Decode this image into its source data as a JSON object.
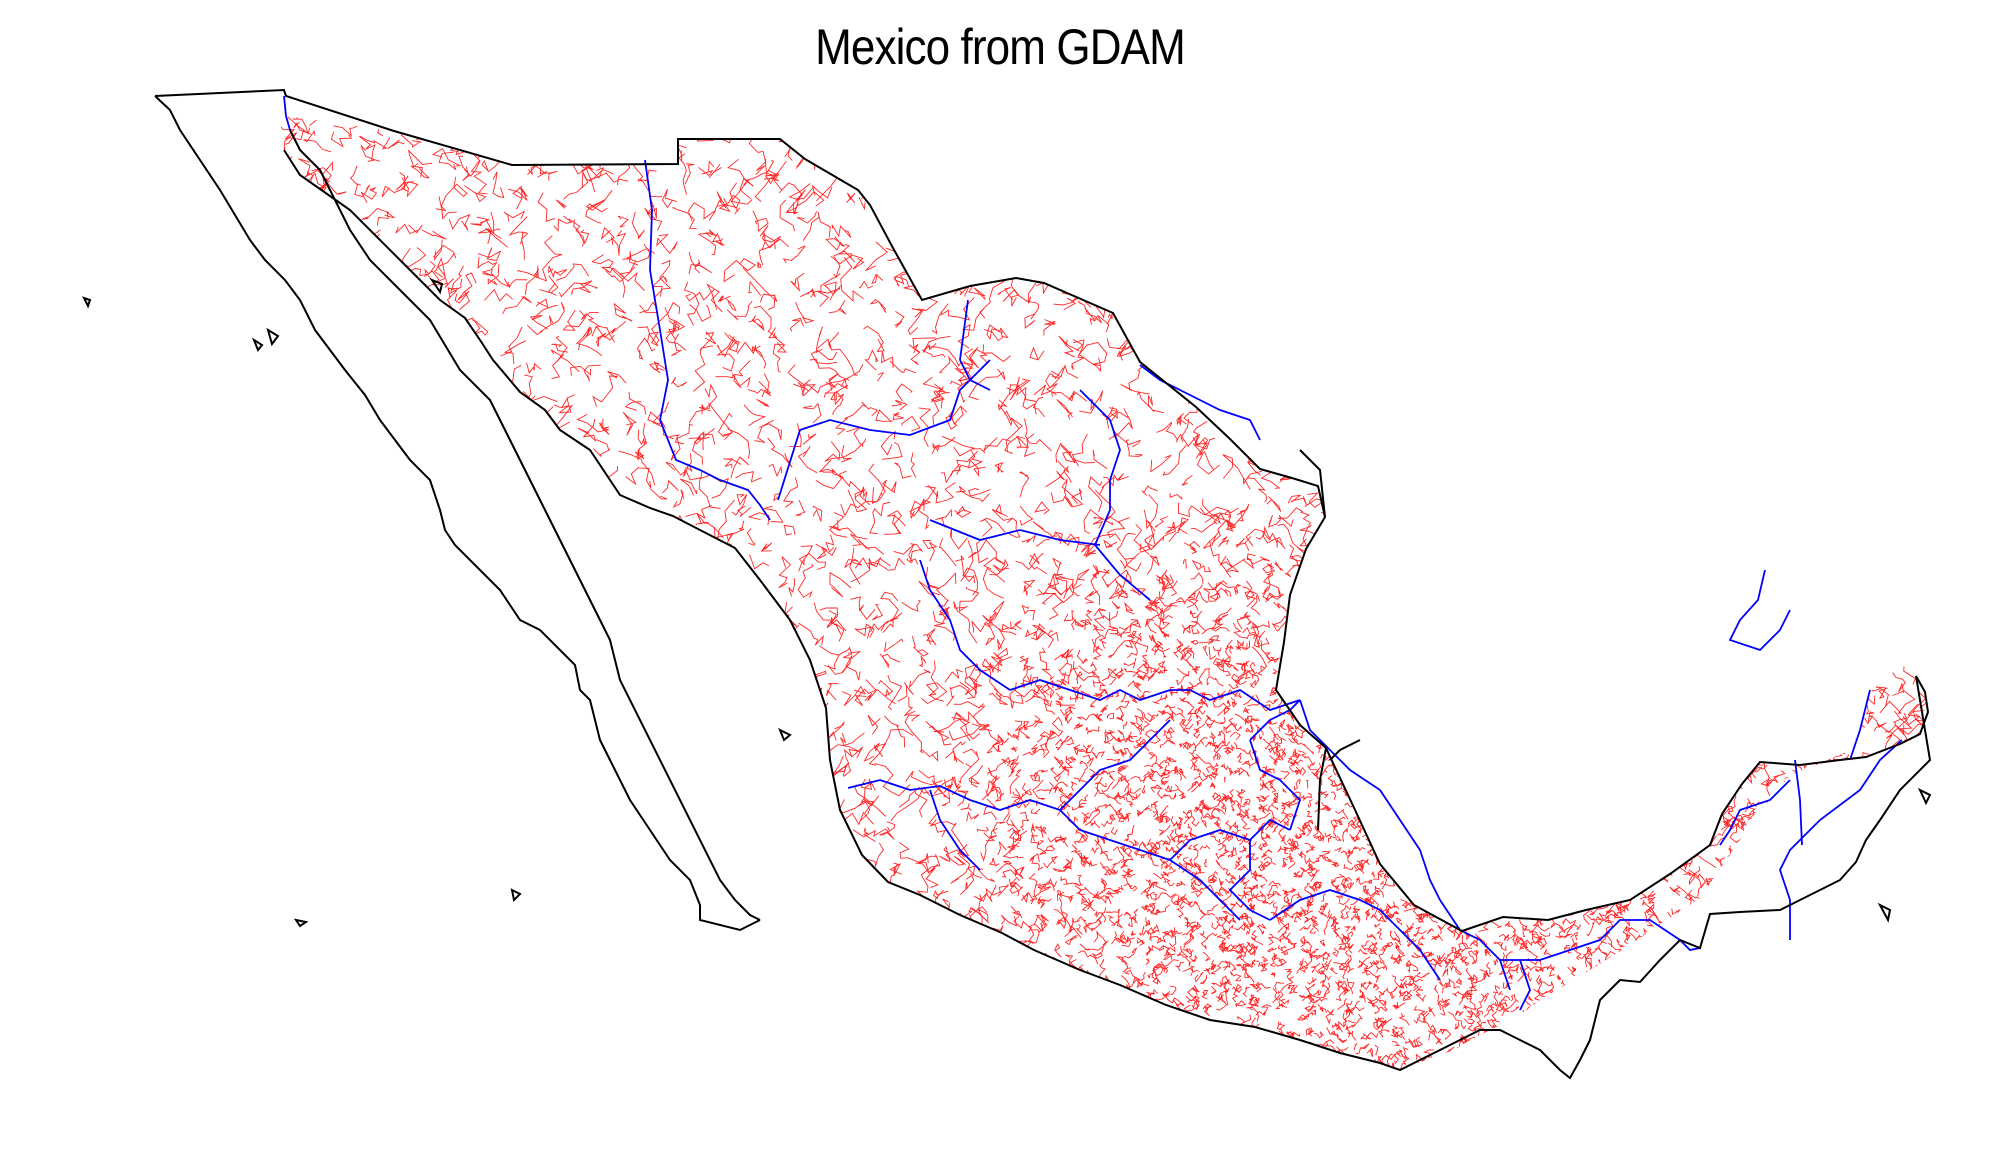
{
  "map": {
    "title": "Mexico from GDAM",
    "colors": {
      "country_outline": "#000000",
      "state_boundaries": "#0000ff",
      "municipal_boundaries": "#ff0000",
      "background": "#ffffff"
    },
    "layers": [
      {
        "name": "country",
        "color": "#000000"
      },
      {
        "name": "states",
        "color": "#0000ff"
      },
      {
        "name": "municipalities",
        "color": "#ff0000"
      }
    ]
  }
}
